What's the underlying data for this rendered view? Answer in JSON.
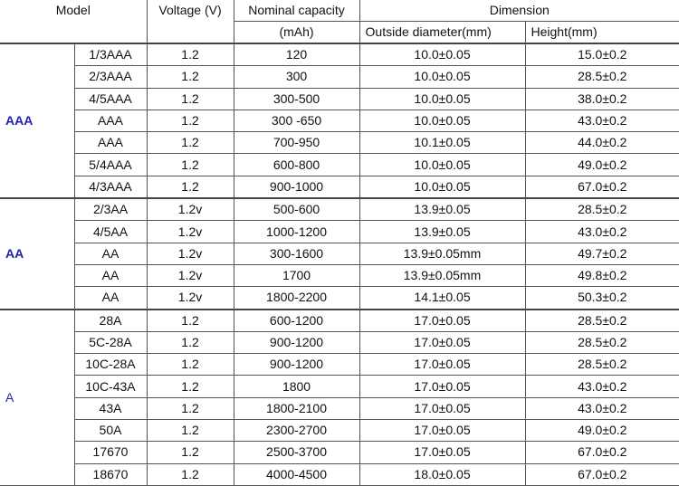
{
  "headers": {
    "model": "Model",
    "voltage": "Voltage (V)",
    "capacity_line1": "Nominal capacity",
    "capacity_line2": "(mAh)",
    "dimension": "Dimension",
    "diameter": "Outside diameter(mm)",
    "height": "Height(mm)"
  },
  "groups": [
    {
      "name": "AAA",
      "rows": [
        [
          "1/3AAA",
          "1.2",
          "120",
          "10.0±0.05",
          "15.0±0.2"
        ],
        [
          "2/3AAA",
          "1.2",
          "300",
          "10.0±0.05",
          "28.5±0.2"
        ],
        [
          "4/5AAA",
          "1.2",
          "300-500",
          "10.0±0.05",
          "38.0±0.2"
        ],
        [
          "AAA",
          "1.2",
          "300 -650",
          "10.0±0.05",
          "43.0±0.2"
        ],
        [
          "AAA",
          "1.2",
          "700-950",
          "10.1±0.05",
          "44.0±0.2"
        ],
        [
          "5/4AAA",
          "1.2",
          "600-800",
          "10.0±0.05",
          "49.0±0.2"
        ],
        [
          "4/3AAA",
          "1.2",
          "900-1000",
          "10.0±0.05",
          "67.0±0.2"
        ]
      ]
    },
    {
      "name": "AA",
      "rows": [
        [
          "2/3AA",
          "1.2v",
          "500-600",
          "13.9±0.05",
          "28.5±0.2"
        ],
        [
          "4/5AA",
          "1.2v",
          "1000-1200",
          "13.9±0.05",
          "43.0±0.2"
        ],
        [
          "AA",
          "1.2v",
          "300-1600",
          "13.9±0.05mm",
          "49.7±0.2"
        ],
        [
          "AA",
          "1.2v",
          "1700",
          "13.9±0.05mm",
          "49.8±0.2"
        ],
        [
          "AA",
          "1.2v",
          "1800-2200",
          "14.1±0.05",
          "50.3±0.2"
        ]
      ]
    },
    {
      "name": "A",
      "rows": [
        [
          "28A",
          "1.2",
          "600-1200",
          "17.0±0.05",
          "28.5±0.2"
        ],
        [
          "5C-28A",
          "1.2",
          "900-1200",
          "17.0±0.05",
          "28.5±0.2"
        ],
        [
          "10C-28A",
          "1.2",
          "900-1200",
          "17.0±0.05",
          "28.5±0.2"
        ],
        [
          "10C-43A",
          "1.2",
          "1800",
          "17.0±0.05",
          "43.0±0.2"
        ],
        [
          "43A",
          "1.2",
          "1800-2100",
          "17.0±0.05",
          "43.0±0.2"
        ],
        [
          "50A",
          "1.2",
          "2300-2700",
          "17.0±0.05",
          "49.0±0.2"
        ],
        [
          "17670",
          "1.2",
          "2500-3700",
          "17.0±0.05",
          "67.0±0.2"
        ],
        [
          "18670",
          "1.2",
          "4000-4500",
          "18.0±0.05",
          "67.0±0.2"
        ]
      ]
    }
  ],
  "colors": {
    "group_label": "#1f1fb0",
    "border": "#555555"
  }
}
